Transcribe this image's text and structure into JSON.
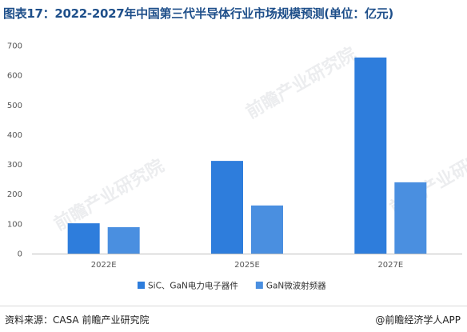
{
  "title": "图表17：2022-2027年中国第三代半导体行业市场规模预测(单位：亿元)",
  "watermark": "前瞻产业研究院",
  "chart_data": {
    "type": "bar",
    "categories": [
      "2022E",
      "2025E",
      "2027E"
    ],
    "series": [
      {
        "name": "SiC、GaN电力电子器件",
        "values": [
          102,
          312,
          660
        ],
        "color": "#2e7ddc"
      },
      {
        "name": "GaN微波射频器",
        "values": [
          89,
          162,
          240
        ],
        "color": "#4a8fe0"
      }
    ],
    "ylim": [
      0,
      700
    ],
    "yticks": [
      0,
      100,
      200,
      300,
      400,
      500,
      600,
      700
    ],
    "grid": false,
    "legend": "bottom",
    "xlabel": "",
    "ylabel": ""
  },
  "footer": {
    "source": "资料来源：CASA 前瞻产业研究院",
    "brand": "@前瞻经济学人APP"
  }
}
